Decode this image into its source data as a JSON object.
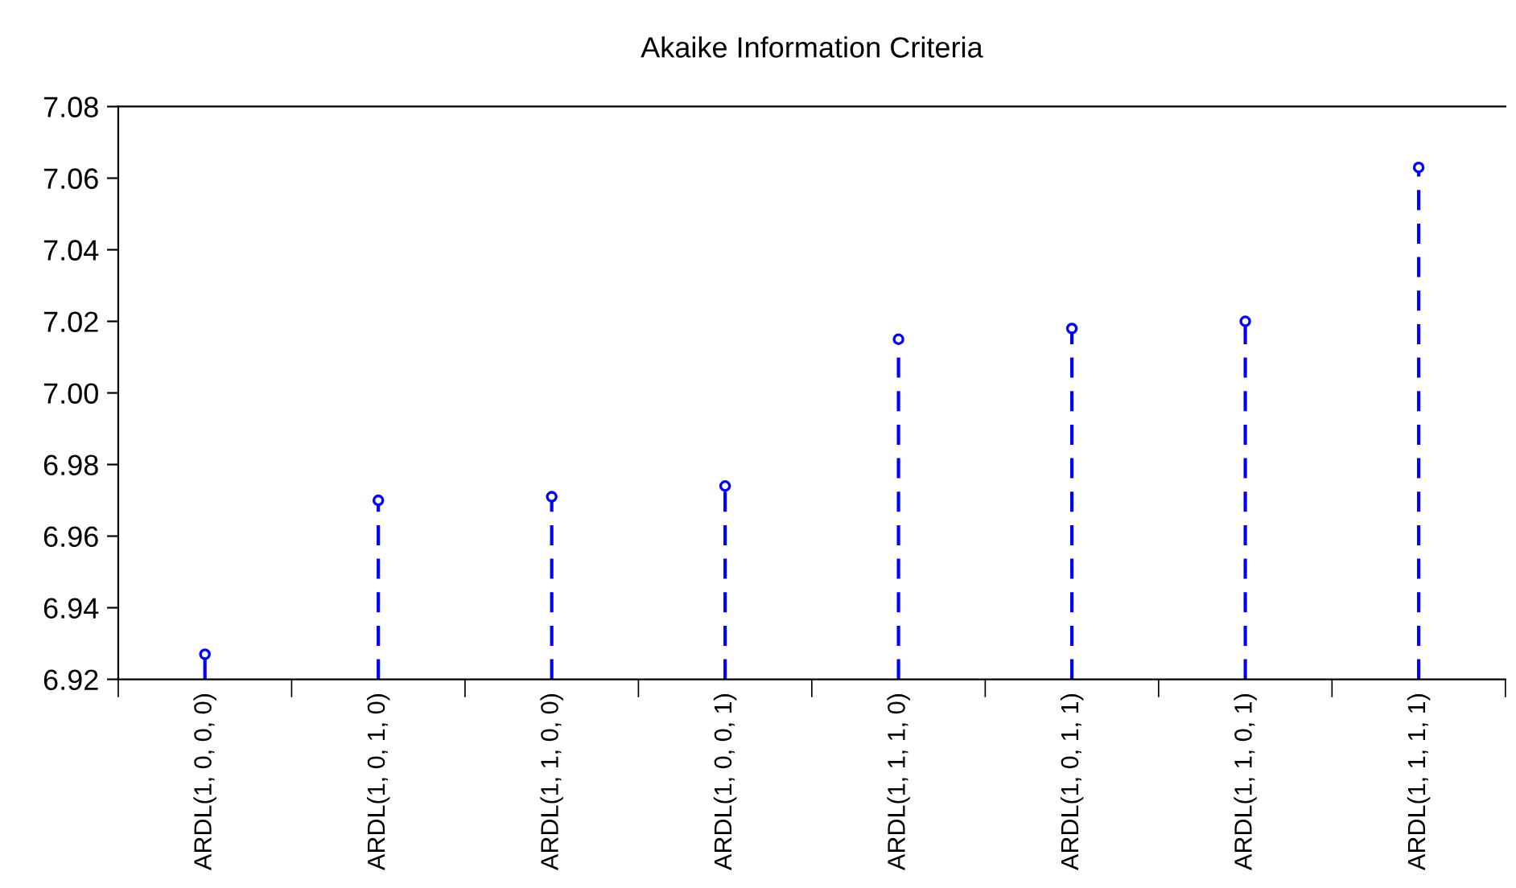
{
  "chart_data": {
    "type": "lollipop",
    "title": "Akaike Information Criteria",
    "categories": [
      "ARDL(1, 0, 0, 0)",
      "ARDL(1, 0, 1, 0)",
      "ARDL(1, 1, 0, 0)",
      "ARDL(1, 0, 0, 1)",
      "ARDL(1, 1, 1, 0)",
      "ARDL(1, 0, 1, 1)",
      "ARDL(1, 1, 0, 1)",
      "ARDL(1, 1, 1, 1)"
    ],
    "values": [
      6.927,
      6.97,
      6.971,
      6.974,
      7.015,
      7.018,
      7.02,
      7.063
    ],
    "color": "#0000ff",
    "marker": "circle",
    "line_style": "dashed",
    "ylim": [
      6.92,
      7.08
    ],
    "yticks": [
      {
        "value": 6.92,
        "label": "6.92"
      },
      {
        "value": 6.94,
        "label": "6.94"
      },
      {
        "value": 6.96,
        "label": "6.96"
      },
      {
        "value": 6.98,
        "label": "6.98"
      },
      {
        "value": 7.0,
        "label": "7.00"
      },
      {
        "value": 7.02,
        "label": "7.02"
      },
      {
        "value": 7.04,
        "label": "7.04"
      },
      {
        "value": 7.06,
        "label": "7.06"
      },
      {
        "value": 7.08,
        "label": "7.08"
      }
    ],
    "grid": false
  }
}
